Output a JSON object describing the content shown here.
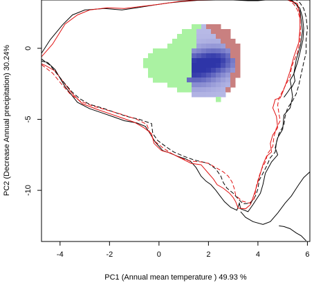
{
  "chart_data": {
    "type": "contour-density",
    "xlabel": "PC1 (Annual mean temperature ) 49.93 %",
    "ylabel": "PC2 (Decrease Annual precipitation) 30.24%",
    "xlim": [
      -4.75,
      6.1
    ],
    "ylim": [
      -13.6,
      3.4
    ],
    "x_ticks": [
      -4,
      -2,
      0,
      2,
      4,
      6
    ],
    "y_ticks": [
      0,
      -5,
      -10
    ],
    "colors": {
      "overlap": "#2e35a8",
      "overlap_light": "#b7b9e6",
      "group_red": "#c98080",
      "group_green": "#aaf2a2",
      "contour_black": "#000000",
      "contour_red": "#e01010"
    },
    "density_peaks": [
      {
        "x": 2.25,
        "y": -0.85,
        "strength": 1.0
      },
      {
        "x": 0.9,
        "y": -1.25,
        "strength": 0.82
      },
      {
        "x": 1.6,
        "y": -1.9,
        "strength": 0.55
      }
    ],
    "green_region": [
      [
        -0.55,
        -0.75
      ],
      [
        -0.35,
        -0.25
      ],
      [
        0.35,
        0.1
      ],
      [
        0.95,
        1.3
      ],
      [
        1.6,
        1.65
      ],
      [
        2.0,
        1.5
      ],
      [
        2.4,
        0.6
      ],
      [
        2.85,
        0.05
      ],
      [
        3.05,
        -1.2
      ],
      [
        2.9,
        -2.3
      ],
      [
        2.55,
        -3.65
      ],
      [
        1.4,
        -3.3
      ],
      [
        0.35,
        -2.6
      ],
      [
        -0.4,
        -2.1
      ],
      [
        -0.55,
        -1.4
      ]
    ],
    "red_region": [
      [
        1.65,
        1.55
      ],
      [
        2.2,
        1.7
      ],
      [
        2.75,
        1.4
      ],
      [
        3.15,
        0.4
      ],
      [
        3.35,
        -0.3
      ],
      [
        3.35,
        -1.55
      ],
      [
        3.05,
        -2.7
      ],
      [
        2.65,
        -3.3
      ],
      [
        1.95,
        -3.6
      ],
      [
        1.4,
        -3.3
      ],
      [
        1.2,
        -2.4
      ],
      [
        1.3,
        -1.2
      ],
      [
        1.45,
        0.2
      ],
      [
        1.55,
        1.0
      ]
    ],
    "series": [
      {
        "style": "solid",
        "color": "black",
        "points": [
          [
            -4.75,
            -0.35
          ],
          [
            -4.4,
            0.6
          ],
          [
            -3.9,
            1.65
          ],
          [
            -3.5,
            2.35
          ],
          [
            -3.0,
            2.7
          ],
          [
            -2.2,
            2.8
          ],
          [
            -1.5,
            2.7
          ],
          [
            -0.9,
            2.85
          ],
          [
            -0.2,
            3.05
          ],
          [
            0.4,
            3.2
          ],
          [
            1.0,
            3.3
          ],
          [
            1.6,
            3.38
          ],
          [
            2.3,
            3.4
          ],
          [
            3.0,
            3.4
          ],
          [
            3.6,
            3.35
          ],
          [
            4.0,
            3.35
          ],
          [
            4.3,
            3.4
          ],
          [
            5.3,
            3.4
          ],
          [
            5.55,
            3.1
          ],
          [
            5.7,
            2.6
          ],
          [
            5.75,
            2.0
          ],
          [
            5.8,
            1.2
          ],
          [
            5.72,
            0.2
          ],
          [
            5.55,
            -0.8
          ],
          [
            5.45,
            -1.8
          ],
          [
            5.5,
            -2.3
          ],
          [
            5.35,
            -2.8
          ],
          [
            5.4,
            -3.4
          ],
          [
            5.3,
            -4.2
          ],
          [
            5.05,
            -4.7
          ],
          [
            5.0,
            -5.7
          ],
          [
            4.8,
            -6.3
          ],
          [
            4.7,
            -7.0
          ],
          [
            4.8,
            -7.5
          ],
          [
            4.55,
            -8.0
          ],
          [
            4.3,
            -8.8
          ],
          [
            4.2,
            -9.6
          ],
          [
            4.1,
            -10.2
          ],
          [
            3.95,
            -10.6
          ],
          [
            3.8,
            -11.0
          ],
          [
            3.6,
            -11.5
          ],
          [
            3.3,
            -11.3
          ],
          [
            3.25,
            -10.9
          ],
          [
            3.15,
            -11.4
          ],
          [
            2.9,
            -11.2
          ],
          [
            2.65,
            -10.8
          ],
          [
            2.45,
            -10.35
          ],
          [
            2.3,
            -10.0
          ],
          [
            2.1,
            -9.6
          ],
          [
            1.9,
            -9.35
          ],
          [
            1.7,
            -9.0
          ],
          [
            1.5,
            -8.4
          ],
          [
            1.3,
            -8.0
          ],
          [
            1.1,
            -7.8
          ],
          [
            0.75,
            -7.6
          ],
          [
            0.4,
            -7.35
          ],
          [
            0.15,
            -7.2
          ],
          [
            -0.15,
            -6.6
          ],
          [
            -0.4,
            -5.9
          ],
          [
            -0.55,
            -5.5
          ],
          [
            -0.9,
            -5.25
          ],
          [
            -1.4,
            -5.1
          ],
          [
            -1.8,
            -4.85
          ],
          [
            -2.3,
            -4.55
          ],
          [
            -2.8,
            -4.25
          ],
          [
            -3.3,
            -3.8
          ],
          [
            -3.8,
            -2.7
          ],
          [
            -4.2,
            -1.5
          ],
          [
            -4.5,
            -1.0
          ],
          [
            -4.75,
            -0.9
          ]
        ]
      },
      {
        "style": "solid",
        "color": "black",
        "points": [
          [
            5.05,
            -3.45
          ],
          [
            5.2,
            -3.1
          ],
          [
            5.35,
            -2.7
          ],
          [
            5.3,
            -2.25
          ],
          [
            5.45,
            -1.8
          ],
          [
            5.6,
            -1.0
          ],
          [
            5.7,
            -0.3
          ],
          [
            5.82,
            0.6
          ],
          [
            5.85,
            1.4
          ],
          [
            5.8,
            2.2
          ],
          [
            5.7,
            2.8
          ],
          [
            5.5,
            3.2
          ],
          [
            5.35,
            3.4
          ]
        ]
      },
      {
        "style": "solid",
        "color": "black",
        "points": [
          [
            3.3,
            -11.5
          ],
          [
            3.5,
            -11.9
          ],
          [
            3.8,
            -12.2
          ],
          [
            4.2,
            -12.4
          ],
          [
            4.5,
            -12.2
          ],
          [
            4.8,
            -11.6
          ],
          [
            5.1,
            -10.9
          ],
          [
            5.35,
            -10.4
          ],
          [
            5.5,
            -10.0
          ],
          [
            5.65,
            -9.6
          ],
          [
            5.85,
            -9.1
          ],
          [
            6.1,
            -8.7
          ]
        ]
      },
      {
        "style": "solid",
        "color": "black",
        "points": [
          [
            4.85,
            -12.5
          ],
          [
            5.05,
            -12.55
          ],
          [
            5.3,
            -12.7
          ],
          [
            5.55,
            -13.0
          ],
          [
            5.75,
            -13.2
          ],
          [
            5.95,
            -13.55
          ]
        ]
      },
      {
        "style": "solid",
        "color": "red",
        "points": [
          [
            -4.75,
            -0.6
          ],
          [
            -4.3,
            0.3
          ],
          [
            -3.8,
            1.7
          ],
          [
            -3.3,
            2.35
          ],
          [
            -2.8,
            2.7
          ],
          [
            -2.1,
            2.85
          ],
          [
            -1.4,
            2.8
          ],
          [
            -0.7,
            2.95
          ],
          [
            0.0,
            3.1
          ],
          [
            0.8,
            3.3
          ],
          [
            1.5,
            3.38
          ],
          [
            2.2,
            3.4
          ],
          [
            3.0,
            3.4
          ],
          [
            4.0,
            3.4
          ],
          [
            5.2,
            3.4
          ],
          [
            5.6,
            3.15
          ],
          [
            5.7,
            2.3
          ],
          [
            5.7,
            1.4
          ],
          [
            5.65,
            0.4
          ],
          [
            5.45,
            -0.6
          ],
          [
            5.3,
            -1.6
          ],
          [
            5.15,
            -2.4
          ],
          [
            5.0,
            -3.1
          ],
          [
            4.9,
            -3.5
          ],
          [
            4.7,
            -3.6
          ],
          [
            4.6,
            -4.2
          ],
          [
            4.75,
            -4.8
          ],
          [
            4.8,
            -5.6
          ],
          [
            4.6,
            -6.1
          ],
          [
            4.5,
            -6.7
          ],
          [
            4.55,
            -7.3
          ],
          [
            4.35,
            -7.6
          ],
          [
            4.2,
            -8.2
          ],
          [
            4.1,
            -8.8
          ],
          [
            4.0,
            -9.4
          ],
          [
            3.9,
            -10.0
          ],
          [
            3.8,
            -10.5
          ],
          [
            3.7,
            -11.0
          ],
          [
            3.5,
            -11.3
          ],
          [
            3.2,
            -11.25
          ],
          [
            3.1,
            -10.8
          ],
          [
            3.0,
            -10.5
          ],
          [
            2.85,
            -10.2
          ],
          [
            2.6,
            -9.85
          ],
          [
            2.35,
            -9.6
          ],
          [
            2.2,
            -9.2
          ],
          [
            2.0,
            -8.8
          ],
          [
            1.8,
            -8.4
          ],
          [
            1.7,
            -8.2
          ],
          [
            1.3,
            -8.1
          ],
          [
            0.9,
            -7.75
          ],
          [
            0.5,
            -7.4
          ],
          [
            0.1,
            -7.2
          ],
          [
            -0.2,
            -6.7
          ],
          [
            -0.3,
            -6.0
          ],
          [
            -0.6,
            -5.6
          ],
          [
            -1.0,
            -5.2
          ],
          [
            -1.5,
            -4.9
          ],
          [
            -2.0,
            -4.6
          ],
          [
            -2.5,
            -4.3
          ],
          [
            -3.1,
            -3.9
          ],
          [
            -3.5,
            -3.2
          ],
          [
            -3.9,
            -2.3
          ],
          [
            -4.2,
            -1.6
          ],
          [
            -4.6,
            -1.2
          ],
          [
            -4.75,
            -1.1
          ]
        ]
      },
      {
        "style": "dashed",
        "color": "black",
        "points": [
          [
            -4.75,
            -0.75
          ],
          [
            -4.4,
            -1.2
          ],
          [
            -4.1,
            -1.85
          ],
          [
            -3.8,
            -2.5
          ],
          [
            -3.5,
            -3.1
          ],
          [
            -3.2,
            -3.55
          ],
          [
            -2.8,
            -3.95
          ],
          [
            -2.3,
            -4.2
          ],
          [
            -1.8,
            -4.5
          ],
          [
            -1.3,
            -4.8
          ],
          [
            -0.8,
            -5.0
          ],
          [
            -0.3,
            -5.3
          ],
          [
            -0.25,
            -6.0
          ],
          [
            -0.05,
            -6.5
          ],
          [
            0.3,
            -6.95
          ],
          [
            0.6,
            -7.3
          ],
          [
            1.0,
            -7.6
          ],
          [
            1.4,
            -7.85
          ],
          [
            1.75,
            -8.0
          ],
          [
            2.0,
            -8.1
          ],
          [
            2.3,
            -8.5
          ],
          [
            2.5,
            -9.0
          ],
          [
            2.6,
            -9.45
          ],
          [
            2.75,
            -9.85
          ],
          [
            3.0,
            -10.2
          ],
          [
            3.2,
            -10.6
          ],
          [
            3.4,
            -10.95
          ],
          [
            3.7,
            -10.9
          ],
          [
            3.9,
            -10.4
          ],
          [
            4.0,
            -9.9
          ],
          [
            4.05,
            -9.3
          ],
          [
            4.2,
            -8.8
          ],
          [
            4.35,
            -8.3
          ],
          [
            4.5,
            -7.7
          ],
          [
            4.7,
            -7.3
          ],
          [
            4.75,
            -6.6
          ],
          [
            4.85,
            -6.0
          ],
          [
            5.05,
            -5.4
          ],
          [
            5.1,
            -4.8
          ],
          [
            5.2,
            -4.2
          ],
          [
            5.4,
            -3.7
          ],
          [
            5.55,
            -3.2
          ],
          [
            5.65,
            -2.6
          ],
          [
            5.75,
            -1.8
          ],
          [
            5.85,
            -1.0
          ],
          [
            5.95,
            -0.3
          ],
          [
            5.95,
            0.6
          ],
          [
            6.0,
            1.4
          ],
          [
            5.95,
            2.2
          ],
          [
            5.85,
            2.8
          ],
          [
            5.7,
            3.2
          ],
          [
            5.55,
            3.4
          ]
        ]
      },
      {
        "style": "dashed",
        "color": "red",
        "points": [
          [
            -4.75,
            -1.15
          ],
          [
            -4.3,
            -1.75
          ],
          [
            -3.95,
            -2.5
          ],
          [
            -3.6,
            -3.2
          ],
          [
            -3.2,
            -3.7
          ],
          [
            -2.7,
            -4.05
          ],
          [
            -2.1,
            -4.35
          ],
          [
            -1.5,
            -4.65
          ],
          [
            -0.9,
            -5.0
          ],
          [
            -0.5,
            -5.35
          ],
          [
            -0.35,
            -6.0
          ],
          [
            -0.2,
            -6.5
          ],
          [
            0.15,
            -7.0
          ],
          [
            0.5,
            -7.4
          ],
          [
            0.9,
            -7.75
          ],
          [
            1.3,
            -7.95
          ],
          [
            1.7,
            -8.0
          ],
          [
            2.0,
            -8.1
          ],
          [
            2.35,
            -8.45
          ],
          [
            2.6,
            -8.7
          ],
          [
            2.8,
            -9.0
          ],
          [
            2.95,
            -9.4
          ],
          [
            3.05,
            -9.9
          ],
          [
            3.1,
            -10.35
          ],
          [
            3.35,
            -10.75
          ],
          [
            3.65,
            -10.9
          ],
          [
            3.85,
            -10.6
          ],
          [
            3.9,
            -10.1
          ],
          [
            3.95,
            -9.6
          ],
          [
            4.05,
            -9.0
          ],
          [
            4.15,
            -8.5
          ],
          [
            4.3,
            -8.0
          ],
          [
            4.4,
            -7.4
          ],
          [
            4.6,
            -6.9
          ],
          [
            4.65,
            -6.2
          ],
          [
            4.75,
            -5.6
          ],
          [
            4.9,
            -5.1
          ],
          [
            4.85,
            -4.6
          ],
          [
            4.8,
            -4.0
          ],
          [
            4.85,
            -3.5
          ],
          [
            5.0,
            -3.0
          ],
          [
            5.15,
            -2.5
          ],
          [
            5.3,
            -2.0
          ],
          [
            5.35,
            -1.4
          ],
          [
            5.45,
            -0.9
          ],
          [
            5.6,
            -0.3
          ],
          [
            5.7,
            0.5
          ],
          [
            5.72,
            1.3
          ],
          [
            5.7,
            2.1
          ],
          [
            5.6,
            2.7
          ],
          [
            5.45,
            3.1
          ],
          [
            5.25,
            3.4
          ]
        ]
      }
    ]
  }
}
